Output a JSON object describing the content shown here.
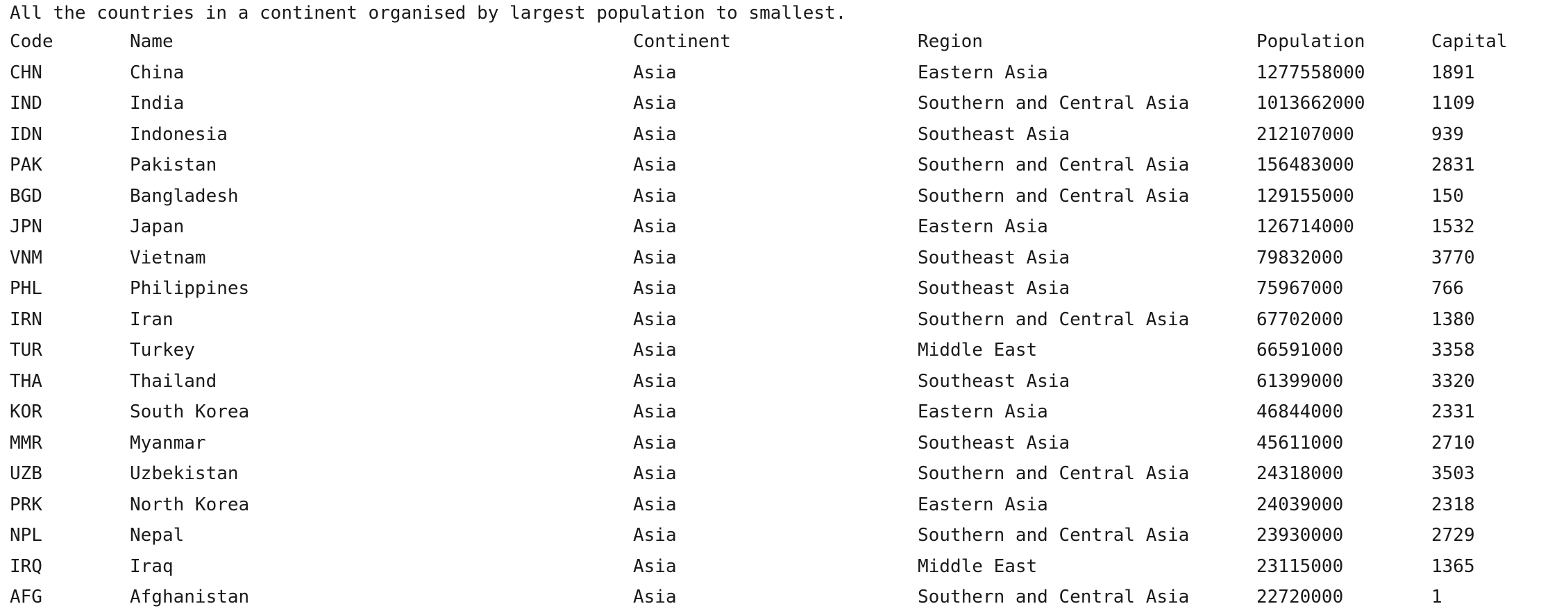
{
  "console": {
    "title": "All the countries in a continent organised by largest population to smallest.",
    "headers": {
      "code": "Code",
      "name": "Name",
      "continent": "Continent",
      "region": "Region",
      "population": "Population",
      "capital": "Capital"
    },
    "rows": [
      {
        "code": "CHN",
        "name": "China",
        "continent": "Asia",
        "region": "Eastern Asia",
        "population": "1277558000",
        "capital": "1891"
      },
      {
        "code": "IND",
        "name": "India",
        "continent": "Asia",
        "region": "Southern and Central Asia",
        "population": "1013662000",
        "capital": "1109"
      },
      {
        "code": "IDN",
        "name": "Indonesia",
        "continent": "Asia",
        "region": "Southeast Asia",
        "population": "212107000",
        "capital": "939"
      },
      {
        "code": "PAK",
        "name": "Pakistan",
        "continent": "Asia",
        "region": "Southern and Central Asia",
        "population": "156483000",
        "capital": "2831"
      },
      {
        "code": "BGD",
        "name": "Bangladesh",
        "continent": "Asia",
        "region": "Southern and Central Asia",
        "population": "129155000",
        "capital": "150"
      },
      {
        "code": "JPN",
        "name": "Japan",
        "continent": "Asia",
        "region": "Eastern Asia",
        "population": "126714000",
        "capital": "1532"
      },
      {
        "code": "VNM",
        "name": "Vietnam",
        "continent": "Asia",
        "region": "Southeast Asia",
        "population": "79832000",
        "capital": "3770"
      },
      {
        "code": "PHL",
        "name": "Philippines",
        "continent": "Asia",
        "region": "Southeast Asia",
        "population": "75967000",
        "capital": "766"
      },
      {
        "code": "IRN",
        "name": "Iran",
        "continent": "Asia",
        "region": "Southern and Central Asia",
        "population": "67702000",
        "capital": "1380"
      },
      {
        "code": "TUR",
        "name": "Turkey",
        "continent": "Asia",
        "region": "Middle East",
        "population": "66591000",
        "capital": "3358"
      },
      {
        "code": "THA",
        "name": "Thailand",
        "continent": "Asia",
        "region": "Southeast Asia",
        "population": "61399000",
        "capital": "3320"
      },
      {
        "code": "KOR",
        "name": "South Korea",
        "continent": "Asia",
        "region": "Eastern Asia",
        "population": "46844000",
        "capital": "2331"
      },
      {
        "code": "MMR",
        "name": "Myanmar",
        "continent": "Asia",
        "region": "Southeast Asia",
        "population": "45611000",
        "capital": "2710"
      },
      {
        "code": "UZB",
        "name": "Uzbekistan",
        "continent": "Asia",
        "region": "Southern and Central Asia",
        "population": "24318000",
        "capital": "3503"
      },
      {
        "code": "PRK",
        "name": "North Korea",
        "continent": "Asia",
        "region": "Eastern Asia",
        "population": "24039000",
        "capital": "2318"
      },
      {
        "code": "NPL",
        "name": "Nepal",
        "continent": "Asia",
        "region": "Southern and Central Asia",
        "population": "23930000",
        "capital": "2729"
      },
      {
        "code": "IRQ",
        "name": "Iraq",
        "continent": "Asia",
        "region": "Middle East",
        "population": "23115000",
        "capital": "1365"
      },
      {
        "code": "AFG",
        "name": "Afghanistan",
        "continent": "Asia",
        "region": "Southern and Central Asia",
        "population": "22720000",
        "capital": "1"
      }
    ]
  }
}
